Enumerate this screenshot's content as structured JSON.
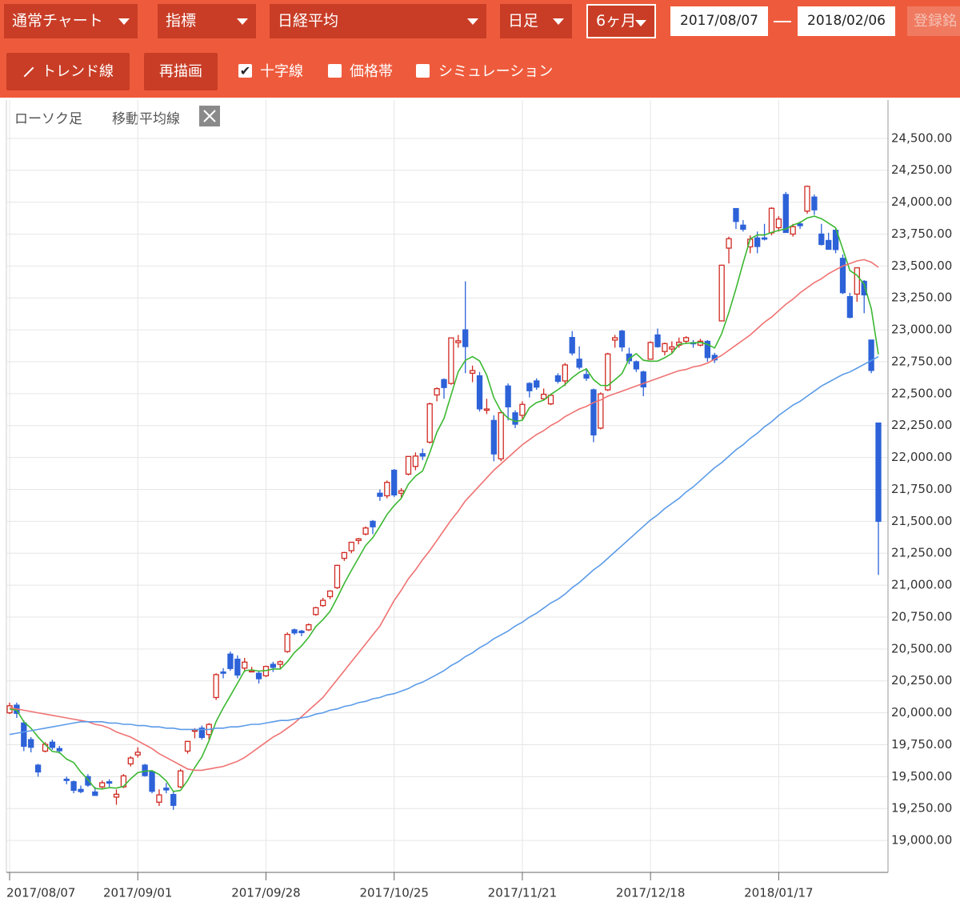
{
  "toolbar": {
    "selects": [
      "通常チャート",
      "指標",
      "日経平均",
      "日足",
      "6ヶ月"
    ],
    "start_date": "2017/08/07",
    "end_date": "2018/02/06",
    "register": "登録銘",
    "buttons": [
      "トレンド線",
      "再描画"
    ],
    "checkboxes": [
      {
        "label": "十字線",
        "checked": true
      },
      {
        "label": "価格帯",
        "checked": false
      },
      {
        "label": "シミュレーション",
        "checked": false
      }
    ]
  },
  "chart_data": {
    "type": "candlestick",
    "legend": [
      "ローソク足",
      "移動平均線"
    ],
    "up_color": "#d02a22",
    "down_color": "#2d62d8",
    "categories": [
      "2017/08/07",
      null,
      null,
      null,
      null,
      null,
      null,
      null,
      null,
      null,
      null,
      null,
      null,
      null,
      null,
      null,
      null,
      null,
      "2017/09/01",
      null,
      null,
      null,
      null,
      null,
      null,
      null,
      null,
      null,
      null,
      null,
      null,
      null,
      null,
      null,
      null,
      null,
      "2017/09/28",
      null,
      null,
      null,
      null,
      null,
      null,
      null,
      null,
      null,
      null,
      null,
      null,
      null,
      null,
      null,
      null,
      null,
      "2017/10/25",
      null,
      null,
      null,
      null,
      null,
      null,
      null,
      null,
      null,
      null,
      null,
      null,
      null,
      null,
      null,
      null,
      null,
      "2017/11/21",
      null,
      null,
      null,
      null,
      null,
      null,
      null,
      null,
      null,
      null,
      null,
      null,
      null,
      null,
      null,
      null,
      null,
      "2017/12/18",
      null,
      null,
      null,
      null,
      null,
      null,
      null,
      null,
      null,
      null,
      null,
      null,
      null,
      null,
      null,
      null,
      null,
      "2018/01/17",
      null,
      null,
      null,
      null,
      null,
      null,
      null,
      null,
      null,
      null,
      null,
      null,
      null,
      null
    ],
    "open": [
      20000,
      20060,
      19920,
      19790,
      19590,
      19700,
      19770,
      19720,
      19480,
      19460,
      19400,
      19500,
      19380,
      19420,
      19460,
      19340,
      19420,
      19600,
      19670,
      19590,
      19540,
      19300,
      19410,
      19360,
      19420,
      19700,
      19860,
      19880,
      19830,
      20120,
      20320,
      20460,
      20420,
      20350,
      20330,
      20310,
      20290,
      20380,
      20380,
      20480,
      20650,
      20640,
      20650,
      20770,
      20840,
      20910,
      20980,
      21210,
      21270,
      21350,
      21400,
      21500,
      21720,
      21700,
      21900,
      21720,
      21870,
      21930,
      22030,
      22120,
      22490,
      22610,
      22580,
      22900,
      23000,
      22660,
      22640,
      22370,
      22290,
      21990,
      22560,
      22350,
      22330,
      22580,
      22600,
      22460,
      22420,
      22640,
      22600,
      22940,
      22770,
      22650,
      22530,
      22230,
      22530,
      22920,
      22990,
      22810,
      22750,
      22670,
      22770,
      22960,
      22830,
      22850,
      22880,
      22910,
      22900,
      22880,
      22910,
      22800,
      23070,
      23640,
      23950,
      23820,
      23650,
      23720,
      23720,
      23760,
      23800,
      24060,
      23750,
      23830,
      23930,
      24040,
      23750,
      23700,
      23780,
      23560,
      23260,
      23280,
      23380,
      22920,
      22270
    ],
    "high": [
      20080,
      20080,
      19940,
      19810,
      19600,
      19770,
      19790,
      19740,
      19500,
      19470,
      19430,
      19520,
      19420,
      19470,
      19480,
      19400,
      19520,
      19660,
      19730,
      19600,
      19550,
      19400,
      19450,
      19380,
      19560,
      19780,
      19880,
      19900,
      19920,
      20310,
      20350,
      20480,
      20450,
      20430,
      20360,
      20330,
      20370,
      20400,
      20410,
      20630,
      20660,
      20650,
      20700,
      20830,
      20900,
      20960,
      21160,
      21260,
      21340,
      21370,
      21460,
      21510,
      21750,
      21820,
      21910,
      21760,
      22010,
      22040,
      22070,
      22430,
      22550,
      22620,
      22940,
      22960,
      23380,
      22720,
      22670,
      22460,
      22330,
      22370,
      22580,
      22370,
      22440,
      22590,
      22620,
      22540,
      22500,
      22660,
      22740,
      22990,
      22870,
      22700,
      22540,
      22510,
      22820,
      22960,
      23000,
      22860,
      22760,
      22680,
      22910,
      23010,
      22900,
      22910,
      22940,
      22950,
      22920,
      22930,
      22920,
      22820,
      23510,
      23730,
      23950,
      23860,
      23740,
      23770,
      23830,
      23960,
      23890,
      24080,
      23830,
      23850,
      24130,
      24060,
      23830,
      23760,
      23790,
      23590,
      23290,
      23490,
      23390,
      22920,
      22270
    ],
    "low": [
      19990,
      19960,
      19700,
      19690,
      19500,
      19690,
      19710,
      19680,
      19440,
      19370,
      19370,
      19420,
      19350,
      19400,
      19420,
      19280,
      19410,
      19580,
      19650,
      19500,
      19370,
      19270,
      19370,
      19240,
      19410,
      19680,
      19800,
      19790,
      19790,
      20100,
      20270,
      20330,
      20270,
      20320,
      20320,
      20230,
      20280,
      20320,
      20340,
      20470,
      20610,
      20600,
      20640,
      20760,
      20830,
      20890,
      20970,
      21190,
      21250,
      21320,
      21390,
      21400,
      21660,
      21680,
      21690,
      21680,
      21860,
      21900,
      21980,
      22110,
      22440,
      22460,
      22570,
      22860,
      22660,
      22590,
      22360,
      22340,
      21970,
      21970,
      22290,
      22230,
      22300,
      22470,
      22530,
      22450,
      22410,
      22580,
      22560,
      22800,
      22690,
      22600,
      22120,
      22220,
      22520,
      22860,
      22830,
      22730,
      22670,
      22480,
      22770,
      22860,
      22800,
      22810,
      22860,
      22890,
      22860,
      22870,
      22750,
      22740,
      23070,
      23520,
      23790,
      23770,
      23600,
      23600,
      23700,
      23740,
      23770,
      23760,
      23730,
      23790,
      23910,
      23900,
      23660,
      23630,
      23600,
      23280,
      23090,
      23220,
      23130,
      22660,
      21080
    ],
    "close": [
      20055,
      19996,
      19738,
      19730,
      19537,
      19753,
      19729,
      19703,
      19470,
      19393,
      19383,
      19434,
      19353,
      19452,
      19449,
      19362,
      19506,
      19646,
      19691,
      19508,
      19385,
      19357,
      19396,
      19275,
      19545,
      19776,
      19865,
      19807,
      19909,
      20299,
      20310,
      20347,
      20296,
      20397,
      20330,
      20267,
      20363,
      20356,
      20400,
      20614,
      20626,
      20628,
      20690,
      20823,
      20881,
      20954,
      21155,
      21255,
      21336,
      21363,
      21448,
      21457,
      21696,
      21805,
      21707,
      21739,
      22008,
      22011,
      22011,
      22420,
      22539,
      22548,
      22937,
      22914,
      22869,
      22681,
      22381,
      22380,
      22028,
      22351,
      22397,
      22261,
      22416,
      22523,
      22551,
      22495,
      22487,
      22597,
      22725,
      22819,
      22707,
      22622,
      22177,
      22498,
      22811,
      22938,
      22866,
      22758,
      22694,
      22553,
      22901,
      22868,
      22892,
      22866,
      22903,
      22939,
      22892,
      22911,
      22783,
      22765,
      23506,
      23714,
      23849,
      23788,
      23710,
      23653,
      23714,
      23952,
      23868,
      23763,
      23808,
      23816,
      24124,
      23940,
      23669,
      23631,
      23629,
      23291,
      23098,
      23486,
      23274,
      22682,
      21500
    ],
    "moving_averages": [
      {
        "color": "#3cb832",
        "values": [
          20030,
          20020,
          19930,
          19880,
          19811,
          19751,
          19697,
          19690,
          19638,
          19610,
          19536,
          19477,
          19407,
          19403,
          19414,
          19410,
          19424,
          19483,
          19531,
          19543,
          19547,
          19517,
          19467,
          19384,
          19392,
          19470,
          19571,
          19654,
          19780,
          19931,
          20038,
          20134,
          20232,
          20330,
          20336,
          20327,
          20331,
          20343,
          20343,
          20400,
          20472,
          20525,
          20592,
          20676,
          20730,
          20795,
          20901,
          21014,
          21116,
          21213,
          21311,
          21372,
          21460,
          21554,
          21623,
          21681,
          21791,
          21854,
          21895,
          22038,
          22198,
          22306,
          22491,
          22672,
          22761,
          22790,
          22756,
          22645,
          22468,
          22364,
          22307,
          22283,
          22291,
          22390,
          22430,
          22449,
          22494,
          22531,
          22571,
          22625,
          22667,
          22694,
          22610,
          22565,
          22563,
          22609,
          22658,
          22774,
          22813,
          22762,
          22754,
          22755,
          22782,
          22816,
          22886,
          22894,
          22898,
          22902,
          22886,
          22858,
          22971,
          23136,
          23323,
          23524,
          23713,
          23743,
          23743,
          23763,
          23779,
          23790,
          23821,
          23841,
          23876,
          23890,
          23871,
          23836,
          23799,
          23632,
          23464,
          23427,
          23356,
          23166,
          22808
        ]
      },
      {
        "color": "#f07272",
        "values": [
          20040,
          20030,
          20020,
          20010,
          20000,
          19990,
          19980,
          19970,
          19960,
          19950,
          19940,
          19930,
          19910,
          19900,
          19880,
          19850,
          19830,
          19810,
          19780,
          19750,
          19720,
          19680,
          19650,
          19620,
          19590,
          19560,
          19550,
          19550,
          19560,
          19570,
          19580,
          19600,
          19620,
          19650,
          19690,
          19730,
          19770,
          19810,
          19840,
          19880,
          19920,
          19970,
          20020,
          20070,
          20120,
          20190,
          20260,
          20330,
          20400,
          20470,
          20540,
          20610,
          20680,
          20780,
          20880,
          20960,
          21050,
          21120,
          21200,
          21270,
          21350,
          21430,
          21510,
          21580,
          21660,
          21720,
          21780,
          21840,
          21900,
          21950,
          22000,
          22050,
          22100,
          22140,
          22180,
          22210,
          22250,
          22280,
          22320,
          22350,
          22380,
          22400,
          22430,
          22450,
          22480,
          22500,
          22520,
          22540,
          22560,
          22580,
          22600,
          22620,
          22640,
          22660,
          22680,
          22690,
          22710,
          22720,
          22740,
          22770,
          22800,
          22840,
          22880,
          22920,
          22960,
          23010,
          23060,
          23100,
          23150,
          23200,
          23240,
          23290,
          23330,
          23370,
          23400,
          23440,
          23470,
          23500,
          23520,
          23540,
          23550,
          23530,
          23490
        ]
      },
      {
        "color": "#5b9be8",
        "values": [
          19830,
          19840,
          19850,
          19860,
          19870,
          19880,
          19890,
          19900,
          19910,
          19920,
          19930,
          19930,
          19930,
          19930,
          19920,
          19920,
          19910,
          19910,
          19900,
          19900,
          19890,
          19890,
          19880,
          19880,
          19870,
          19870,
          19870,
          19870,
          19870,
          19880,
          19880,
          19890,
          19890,
          19900,
          19910,
          19910,
          19920,
          19930,
          19940,
          19940,
          19950,
          19960,
          19970,
          19990,
          20000,
          20020,
          20030,
          20050,
          20060,
          20080,
          20090,
          20110,
          20120,
          20140,
          20150,
          20170,
          20190,
          20220,
          20240,
          20270,
          20300,
          20330,
          20370,
          20400,
          20440,
          20470,
          20510,
          20540,
          20580,
          20610,
          20640,
          20680,
          20710,
          20750,
          20780,
          20820,
          20860,
          20890,
          20930,
          20980,
          21020,
          21070,
          21120,
          21160,
          21210,
          21260,
          21310,
          21360,
          21410,
          21460,
          21510,
          21550,
          21600,
          21640,
          21680,
          21730,
          21770,
          21820,
          21870,
          21920,
          21960,
          22010,
          22060,
          22100,
          22150,
          22190,
          22240,
          22280,
          22330,
          22370,
          22410,
          22440,
          22480,
          22520,
          22560,
          22590,
          22620,
          22650,
          22670,
          22700,
          22730,
          22760,
          22790
        ]
      }
    ],
    "ylim": [
      18750,
      24800
    ],
    "yticks": [
      {
        "value": 19000,
        "label": "19,000.00"
      },
      {
        "value": 19250,
        "label": "19,250.00"
      },
      {
        "value": 19500,
        "label": "19,500.00"
      },
      {
        "value": 19750,
        "label": "19,750.00"
      },
      {
        "value": 20000,
        "label": "20,000.00"
      },
      {
        "value": 20250,
        "label": "20,250.00"
      },
      {
        "value": 20500,
        "label": "20,500.00"
      },
      {
        "value": 20750,
        "label": "20,750.00"
      },
      {
        "value": 21000,
        "label": "21,000.00"
      },
      {
        "value": 21250,
        "label": "21,250.00"
      },
      {
        "value": 21500,
        "label": "21,500.00"
      },
      {
        "value": 21750,
        "label": "21,750.00"
      },
      {
        "value": 22000,
        "label": "22,000.00"
      },
      {
        "value": 22250,
        "label": "22,250.00"
      },
      {
        "value": 22500,
        "label": "22,500.00"
      },
      {
        "value": 22750,
        "label": "22,750.00"
      },
      {
        "value": 23000,
        "label": "23,000.00"
      },
      {
        "value": 23250,
        "label": "23,250.00"
      },
      {
        "value": 23500,
        "label": "23,500.00"
      },
      {
        "value": 23750,
        "label": "23,750.00"
      },
      {
        "value": 24000,
        "label": "24,000.00"
      },
      {
        "value": 24250,
        "label": "24,250.00"
      },
      {
        "value": 24500,
        "label": "24,500.00"
      }
    ],
    "grid": true
  }
}
